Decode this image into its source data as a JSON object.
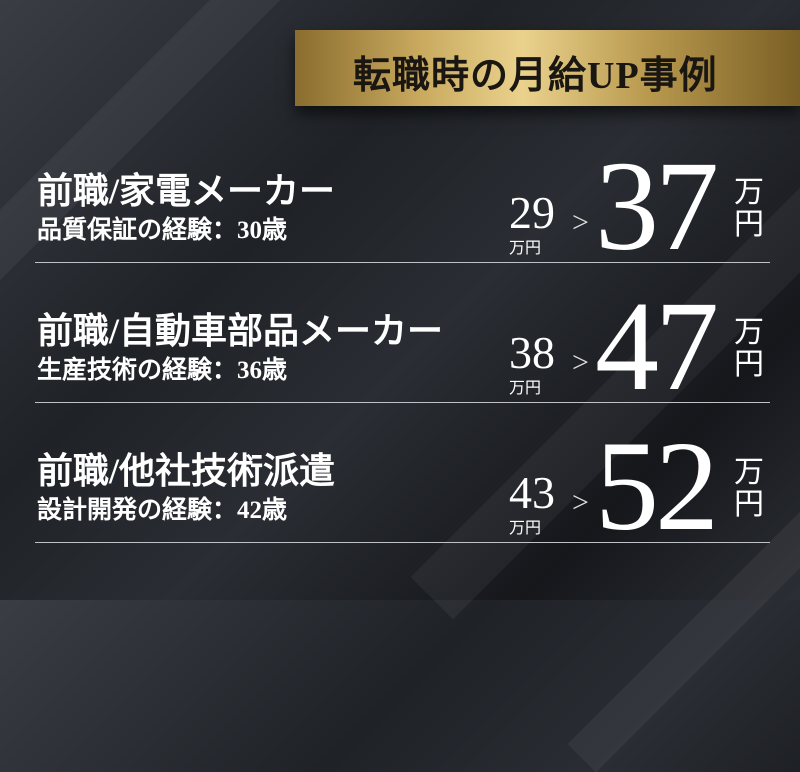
{
  "title": "転職時の月給UP事例",
  "colors": {
    "gold": "#d9bd72",
    "background": "#24272c",
    "text": "#ffffff"
  },
  "cases": [
    {
      "previous": "前職/家電メーカー",
      "detail": "品質保証の経験：30歳",
      "before": "29",
      "before_unit": "万円",
      "arrow": ">",
      "after": "37",
      "after_unit_1": "万",
      "after_unit_2": "円"
    },
    {
      "previous": "前職/自動車部品メーカー",
      "detail": "生産技術の経験：36歳",
      "before": "38",
      "before_unit": "万円",
      "arrow": ">",
      "after": "47",
      "after_unit_1": "万",
      "after_unit_2": "円"
    },
    {
      "previous": "前職/他社技術派遣",
      "detail": "設計開発の経験：42歳",
      "before": "43",
      "before_unit": "万円",
      "arrow": ">",
      "after": "52",
      "after_unit_1": "万",
      "after_unit_2": "円"
    }
  ]
}
